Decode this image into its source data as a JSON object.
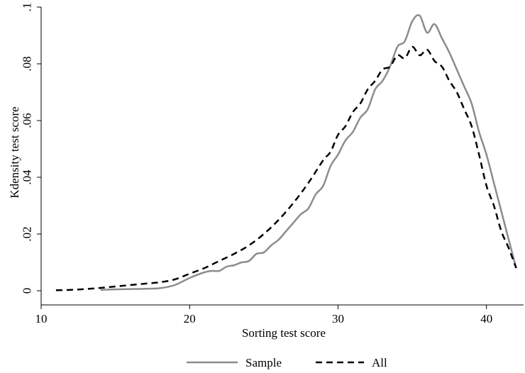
{
  "chart_data": {
    "type": "line",
    "xlabel": "Sorting test score",
    "ylabel": "Kdensity test score",
    "xlim": [
      10,
      42.5
    ],
    "ylim": [
      -0.005,
      0.1
    ],
    "x_ticks": [
      10,
      20,
      30,
      40
    ],
    "x_tick_labels": [
      "10",
      "20",
      "30",
      "40"
    ],
    "y_ticks": [
      0,
      0.02,
      0.04,
      0.06,
      0.08,
      0.1
    ],
    "y_tick_labels": [
      "0",
      ".02",
      ".04",
      ".06",
      ".08",
      ".1"
    ],
    "grid": false,
    "legend_position": "bottom",
    "series": [
      {
        "name": "Sample",
        "color": "#8c8c8c",
        "style": "solid",
        "points": [
          [
            14,
            0.0003
          ],
          [
            15,
            0.0005
          ],
          [
            16,
            0.0006
          ],
          [
            17,
            0.0007
          ],
          [
            18,
            0.0009
          ],
          [
            19,
            0.002
          ],
          [
            20,
            0.0045
          ],
          [
            21,
            0.0065
          ],
          [
            21.5,
            0.007
          ],
          [
            22,
            0.007
          ],
          [
            22.5,
            0.0085
          ],
          [
            23,
            0.009
          ],
          [
            23.5,
            0.01
          ],
          [
            24,
            0.0105
          ],
          [
            24.5,
            0.013
          ],
          [
            25,
            0.0135
          ],
          [
            25.5,
            0.016
          ],
          [
            26,
            0.018
          ],
          [
            26.5,
            0.021
          ],
          [
            27,
            0.024
          ],
          [
            27.5,
            0.027
          ],
          [
            28,
            0.029
          ],
          [
            28.5,
            0.034
          ],
          [
            29,
            0.037
          ],
          [
            29.5,
            0.044
          ],
          [
            30,
            0.048
          ],
          [
            30.5,
            0.053
          ],
          [
            31,
            0.056
          ],
          [
            31.5,
            0.061
          ],
          [
            32,
            0.064
          ],
          [
            32.5,
            0.071
          ],
          [
            33,
            0.074
          ],
          [
            33.5,
            0.079
          ],
          [
            34,
            0.086
          ],
          [
            34.5,
            0.088
          ],
          [
            35,
            0.095
          ],
          [
            35.5,
            0.097
          ],
          [
            36,
            0.091
          ],
          [
            36.5,
            0.094
          ],
          [
            37,
            0.089
          ],
          [
            37.5,
            0.084
          ],
          [
            38,
            0.078
          ],
          [
            38.5,
            0.072
          ],
          [
            39,
            0.066
          ],
          [
            39.5,
            0.056
          ],
          [
            40,
            0.048
          ],
          [
            40.5,
            0.038
          ],
          [
            41,
            0.028
          ],
          [
            41.5,
            0.018
          ],
          [
            42,
            0.008
          ]
        ]
      },
      {
        "name": "All",
        "color": "#000000",
        "style": "dashed",
        "points": [
          [
            11,
            0.0002
          ],
          [
            12,
            0.0003
          ],
          [
            13,
            0.0006
          ],
          [
            14,
            0.001
          ],
          [
            15,
            0.0015
          ],
          [
            16,
            0.002
          ],
          [
            17,
            0.0025
          ],
          [
            18,
            0.003
          ],
          [
            19,
            0.004
          ],
          [
            20,
            0.006
          ],
          [
            21,
            0.008
          ],
          [
            22,
            0.0105
          ],
          [
            23,
            0.013
          ],
          [
            24,
            0.016
          ],
          [
            25,
            0.02
          ],
          [
            26,
            0.025
          ],
          [
            27,
            0.031
          ],
          [
            28,
            0.038
          ],
          [
            29,
            0.046
          ],
          [
            29.5,
            0.049
          ],
          [
            30,
            0.055
          ],
          [
            30.5,
            0.058
          ],
          [
            31,
            0.063
          ],
          [
            31.5,
            0.066
          ],
          [
            32,
            0.071
          ],
          [
            32.5,
            0.074
          ],
          [
            33,
            0.078
          ],
          [
            33.5,
            0.079
          ],
          [
            34,
            0.083
          ],
          [
            34.5,
            0.082
          ],
          [
            35,
            0.086
          ],
          [
            35.5,
            0.083
          ],
          [
            36,
            0.085
          ],
          [
            36.5,
            0.081
          ],
          [
            37,
            0.079
          ],
          [
            37.5,
            0.074
          ],
          [
            38,
            0.07
          ],
          [
            38.5,
            0.064
          ],
          [
            39,
            0.058
          ],
          [
            39.5,
            0.048
          ],
          [
            40,
            0.037
          ],
          [
            40.5,
            0.03
          ],
          [
            41,
            0.021
          ],
          [
            41.5,
            0.015
          ],
          [
            42,
            0.008
          ]
        ]
      }
    ]
  }
}
